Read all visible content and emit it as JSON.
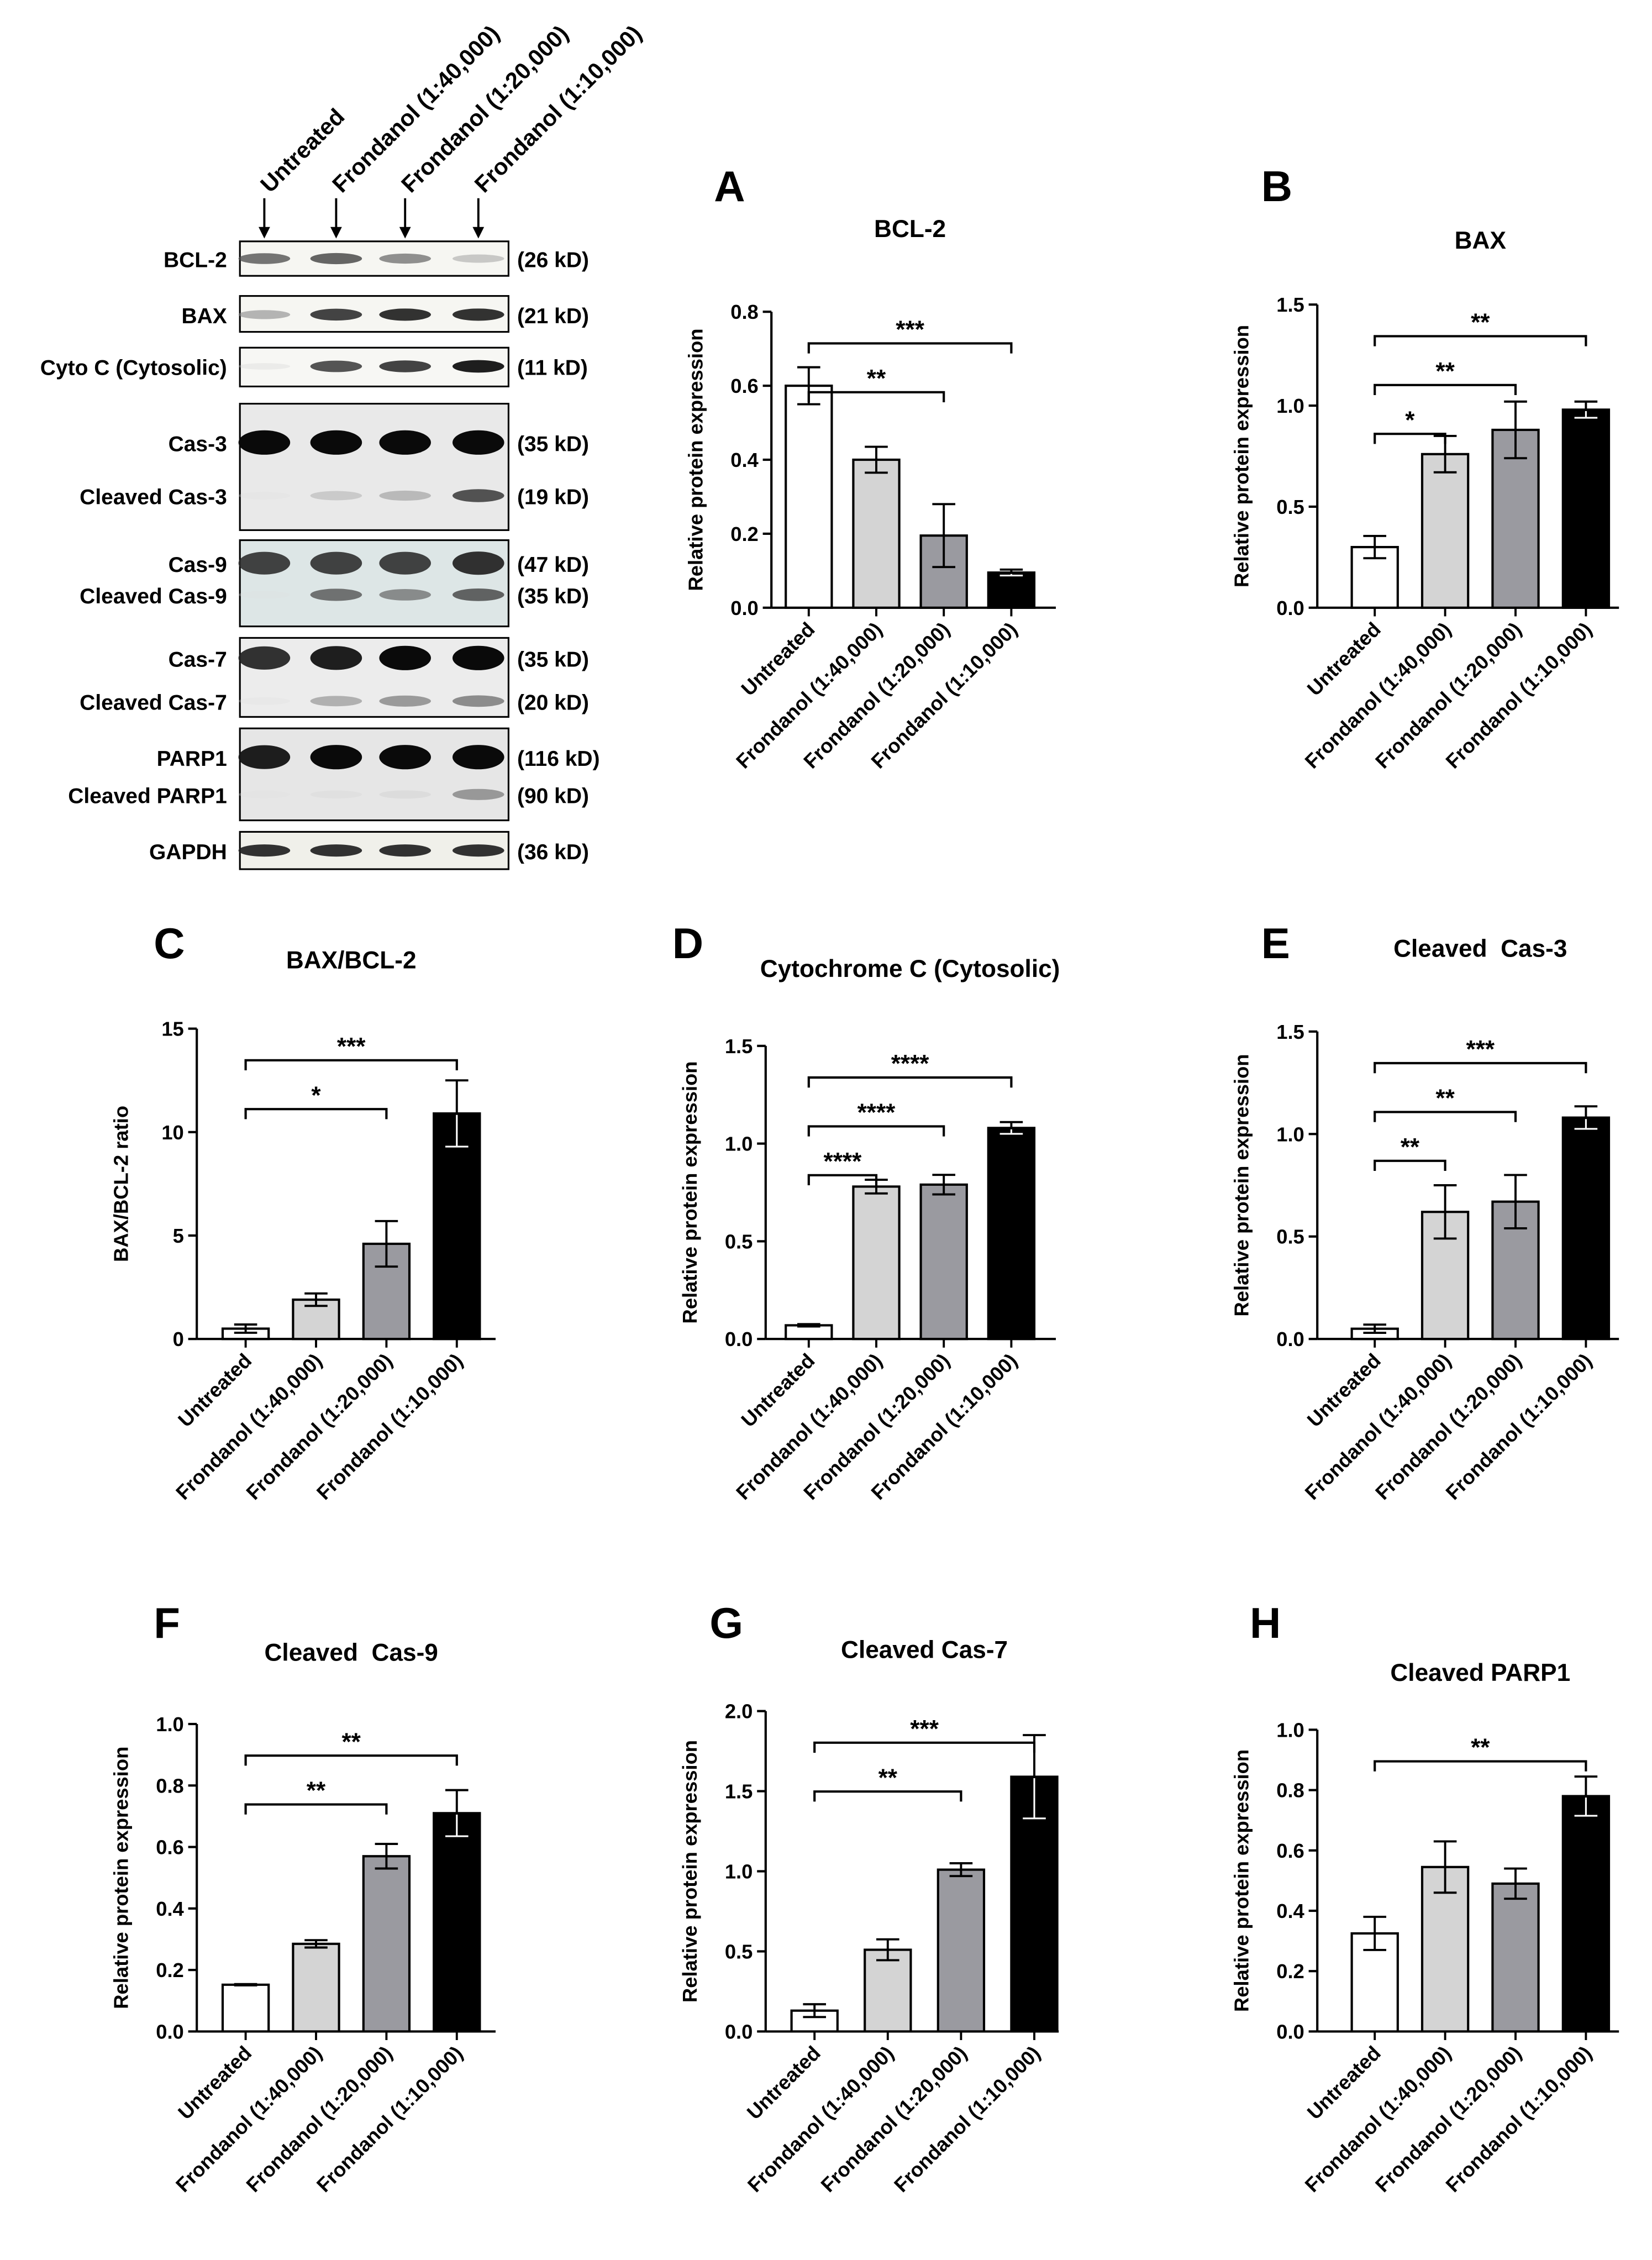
{
  "blot": {
    "lanes": [
      "Untreated",
      "Frondanol (1:40,000)",
      "Frondanol (1:20,000)",
      "Frondanol (1:10,000)"
    ],
    "rows": [
      {
        "labels": [
          "BCL-2"
        ],
        "kd": [
          "(26 kD)"
        ],
        "intensity": [
          [
            0.7,
            0.75,
            0.6,
            0.35
          ]
        ]
      },
      {
        "labels": [
          "BAX"
        ],
        "kd": [
          "(21 kD)"
        ],
        "intensity": [
          [
            0.45,
            0.85,
            0.9,
            0.9
          ]
        ]
      },
      {
        "labels": [
          "Cyto C (Cytosolic)"
        ],
        "kd": [
          "(11 kD)"
        ],
        "intensity": [
          [
            0.1,
            0.8,
            0.85,
            0.95
          ]
        ]
      },
      {
        "labels": [
          "Cas-3",
          "Cleaved Cas-3"
        ],
        "kd": [
          "(35 kD)",
          "(19 kD)"
        ],
        "intensity": [
          [
            1,
            1,
            1,
            1
          ],
          [
            0.05,
            0.3,
            0.4,
            0.8
          ]
        ]
      },
      {
        "labels": [
          "Cas-9",
          "Cleaved Cas-9"
        ],
        "kd": [
          "(47 kD)",
          "(35 kD)"
        ],
        "intensity": [
          [
            0.85,
            0.85,
            0.85,
            0.9
          ],
          [
            0.05,
            0.7,
            0.6,
            0.75
          ]
        ]
      },
      {
        "labels": [
          "Cas-7",
          "Cleaved Cas-7"
        ],
        "kd": [
          "(35 kD)",
          "(20 kD)"
        ],
        "intensity": [
          [
            0.9,
            0.95,
            1,
            1
          ],
          [
            0.05,
            0.45,
            0.55,
            0.6
          ]
        ]
      },
      {
        "labels": [
          "PARP1",
          "Cleaved PARP1"
        ],
        "kd": [
          "(116 kD)",
          "(90 kD)"
        ],
        "intensity": [
          [
            0.95,
            1,
            1,
            1
          ],
          [
            0.05,
            0.1,
            0.15,
            0.55
          ]
        ]
      },
      {
        "labels": [
          "GAPDH"
        ],
        "kd": [
          "(36 kD)"
        ],
        "intensity": [
          [
            0.9,
            0.9,
            0.9,
            0.9
          ]
        ]
      }
    ]
  },
  "chart_data": [
    {
      "panel": "A",
      "type": "bar",
      "title": "BCL-2",
      "ylabel": "Relative protein expression",
      "categories": [
        "Untreated",
        "Frondanol (1:40,000)",
        "Frondanol (1:20,000)",
        "Frondanol (1:10,000)"
      ],
      "values": [
        0.6,
        0.4,
        0.195,
        0.095
      ],
      "errors": [
        0.05,
        0.035,
        0.085,
        0.008
      ],
      "ylim": [
        0,
        0.8
      ],
      "yticks": [
        0.0,
        0.2,
        0.4,
        0.6,
        0.8
      ],
      "decimals": 1,
      "significance": [
        {
          "to": 2,
          "label": "**"
        },
        {
          "to": 3,
          "label": "***"
        }
      ]
    },
    {
      "panel": "B",
      "type": "bar",
      "title": "BAX",
      "ylabel": "Relative protein expression",
      "categories": [
        "Untreated",
        "Frondanol (1:40,000)",
        "Frondanol (1:20,000)",
        "Frondanol (1:10,000)"
      ],
      "values": [
        0.3,
        0.76,
        0.88,
        0.98
      ],
      "errors": [
        0.055,
        0.09,
        0.14,
        0.04
      ],
      "ylim": [
        0,
        1.5
      ],
      "yticks": [
        0.0,
        0.5,
        1.0,
        1.5
      ],
      "decimals": 1,
      "significance": [
        {
          "to": 1,
          "label": "*"
        },
        {
          "to": 2,
          "label": "**"
        },
        {
          "to": 3,
          "label": "**"
        }
      ]
    },
    {
      "panel": "C",
      "type": "bar",
      "title": "BAX/BCL-2",
      "ylabel": "BAX/BCL-2 ratio",
      "categories": [
        "Untreated",
        "Frondanol (1:40,000)",
        "Frondanol (1:20,000)",
        "Frondanol (1:10,000)"
      ],
      "values": [
        0.5,
        1.9,
        4.6,
        10.9
      ],
      "errors": [
        0.2,
        0.3,
        1.1,
        1.6
      ],
      "ylim": [
        0,
        15
      ],
      "yticks": [
        0,
        5,
        10,
        15
      ],
      "decimals": 0,
      "significance": [
        {
          "to": 2,
          "label": "*"
        },
        {
          "to": 3,
          "label": "***"
        }
      ]
    },
    {
      "panel": "D",
      "type": "bar",
      "title": "Cytochrome C (Cytosolic)",
      "ylabel": "Relative protein expression",
      "categories": [
        "Untreated",
        "Frondanol (1:40,000)",
        "Frondanol (1:20,000)",
        "Frondanol (1:10,000)"
      ],
      "values": [
        0.07,
        0.78,
        0.79,
        1.08
      ],
      "errors": [
        0.006,
        0.035,
        0.05,
        0.03
      ],
      "ylim": [
        0,
        1.5
      ],
      "yticks": [
        0.0,
        0.5,
        1.0,
        1.5
      ],
      "decimals": 1,
      "significance": [
        {
          "to": 1,
          "label": "****"
        },
        {
          "to": 2,
          "label": "****"
        },
        {
          "to": 3,
          "label": "****"
        }
      ]
    },
    {
      "panel": "E",
      "type": "bar",
      "title": "Cleaved  Cas-3",
      "ylabel": "Relative protein expression",
      "categories": [
        "Untreated",
        "Frondanol (1:40,000)",
        "Frondanol (1:20,000)",
        "Frondanol (1:10,000)"
      ],
      "values": [
        0.05,
        0.62,
        0.67,
        1.08
      ],
      "errors": [
        0.02,
        0.13,
        0.13,
        0.055
      ],
      "ylim": [
        0,
        1.5
      ],
      "yticks": [
        0.0,
        0.5,
        1.0,
        1.5
      ],
      "decimals": 1,
      "significance": [
        {
          "to": 1,
          "label": "**"
        },
        {
          "to": 2,
          "label": "**"
        },
        {
          "to": 3,
          "label": "***"
        }
      ]
    },
    {
      "panel": "F",
      "type": "bar",
      "title": "Cleaved  Cas-9",
      "ylabel": "Relative protein expression",
      "categories": [
        "Untreated",
        "Frondanol (1:40,000)",
        "Frondanol (1:20,000)",
        "Frondanol (1:10,000)"
      ],
      "values": [
        0.152,
        0.285,
        0.57,
        0.71
      ],
      "errors": [
        0.002,
        0.012,
        0.04,
        0.075
      ],
      "ylim": [
        0,
        1.0
      ],
      "yticks": [
        0.0,
        0.2,
        0.4,
        0.6,
        0.8,
        1.0
      ],
      "decimals": 1,
      "significance": [
        {
          "to": 2,
          "label": "**"
        },
        {
          "to": 3,
          "label": "**"
        }
      ]
    },
    {
      "panel": "G",
      "type": "bar",
      "title": "Cleaved Cas-7",
      "ylabel": "Relative protein expression",
      "categories": [
        "Untreated",
        "Frondanol (1:40,000)",
        "Frondanol (1:20,000)",
        "Frondanol (1:10,000)"
      ],
      "values": [
        0.13,
        0.51,
        1.01,
        1.59
      ],
      "errors": [
        0.04,
        0.065,
        0.04,
        0.26
      ],
      "ylim": [
        0,
        2.0
      ],
      "yticks": [
        0.0,
        0.5,
        1.0,
        1.5,
        2.0
      ],
      "decimals": 1,
      "significance": [
        {
          "to": 2,
          "label": "**"
        },
        {
          "to": 3,
          "label": "***"
        }
      ]
    },
    {
      "panel": "H",
      "type": "bar",
      "title": "Cleaved PARP1",
      "ylabel": "Relative protein expression",
      "categories": [
        "Untreated",
        "Frondanol (1:40,000)",
        "Frondanol (1:20,000)",
        "Frondanol (1:10,000)"
      ],
      "values": [
        0.325,
        0.545,
        0.49,
        0.78
      ],
      "errors": [
        0.055,
        0.085,
        0.05,
        0.065
      ],
      "ylim": [
        0,
        1.0
      ],
      "yticks": [
        0.0,
        0.2,
        0.4,
        0.6,
        0.8,
        1.0
      ],
      "decimals": 1,
      "significance": [
        {
          "to": 3,
          "label": "**"
        }
      ]
    }
  ],
  "style": {
    "bar_colors": [
      "#ffffff",
      "#d4d4d4",
      "#9a9aa0",
      "#000000"
    ]
  }
}
